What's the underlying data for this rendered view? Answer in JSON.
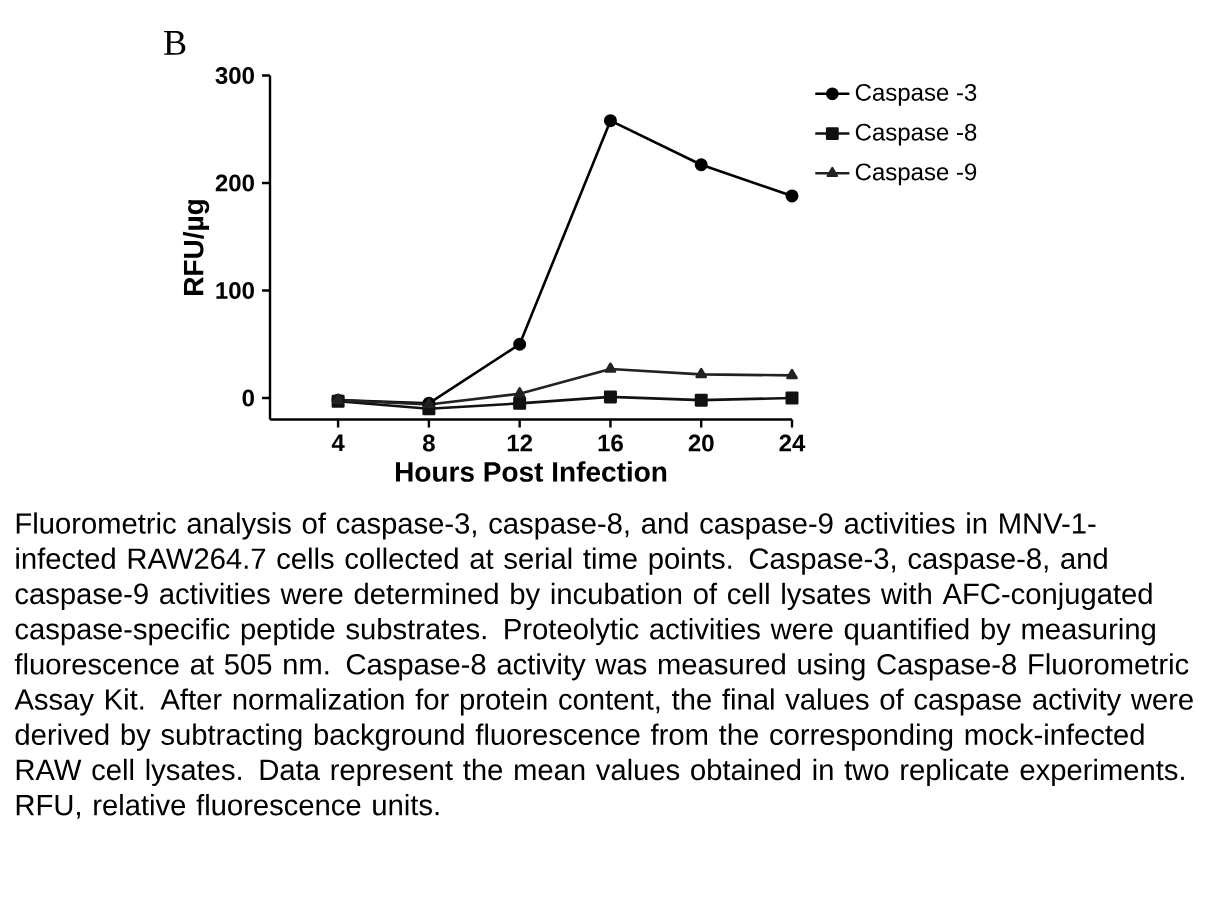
{
  "chart_data": {
    "type": "line",
    "xlabel": "Hours Post Infection",
    "ylabel": "RFU/µg",
    "x": [
      4,
      8,
      12,
      16,
      20,
      24
    ],
    "series": [
      {
        "name": "Caspase -3",
        "color": "#000000",
        "marker": "circle",
        "values": [
          -2,
          -5,
          50,
          258,
          217,
          188
        ]
      },
      {
        "name": "Caspase -8",
        "color": "#111111",
        "marker": "square",
        "values": [
          -3,
          -10,
          -5,
          1,
          -2,
          0
        ]
      },
      {
        "name": "Caspase -9",
        "color": "#222222",
        "marker": "triangle",
        "values": [
          -2,
          -6,
          4,
          27,
          22,
          21
        ]
      }
    ],
    "xlim": [
      1,
      24
    ],
    "ylim": [
      -20,
      300
    ],
    "xticks": [
      4,
      8,
      12,
      16,
      20,
      24
    ],
    "yticks": [
      0,
      100,
      200,
      300
    ],
    "legend": "top right",
    "line_style": "solid",
    "grid": false,
    "annotations": [
      "B",
      "Fluorometric analysis of caspase-3, caspase-8, and caspase-9 activities in MNV-1-infected RAW264.7 cells collected at serial time points. Caspase-3, caspase-8, and caspase-9 activities were determined by incubation of cell lysates with AFC-conjugated caspase-specific peptide substrates. Proteolytic activities were quantified by measuring fluorescence at 505 nm. Caspase-8 activity was measured using Caspase-8 Fluorometric Assay Kit. After normalization for protein content, the final values of caspase activity were derived by subtracting background fluorescence from the corresponding mock-infected RAW cell lysates. Data represent the mean values obtained in two replicate experiments. RFU, relative fluorescence units."
    ]
  }
}
